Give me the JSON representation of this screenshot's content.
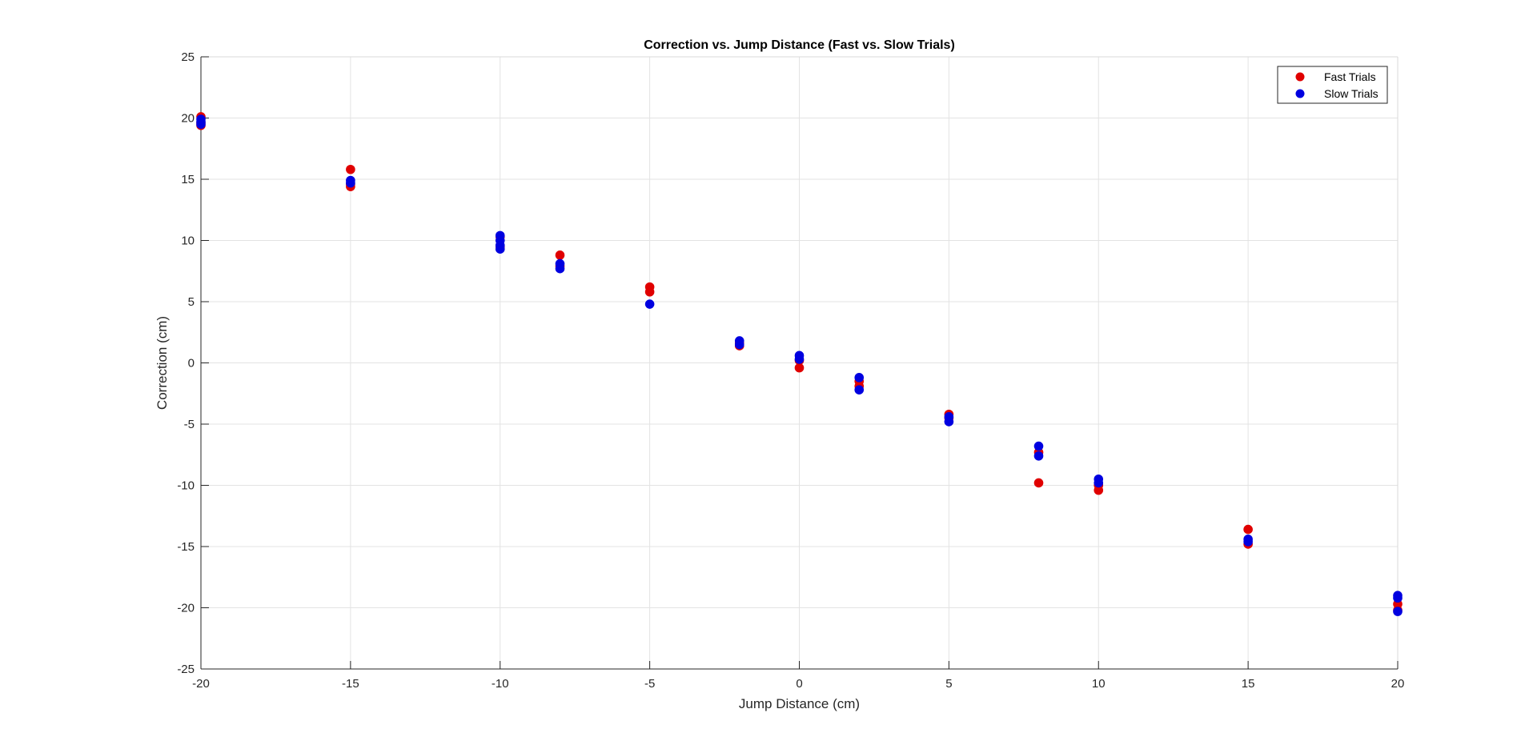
{
  "chart_data": {
    "type": "scatter",
    "title": "Correction vs. Jump Distance (Fast vs. Slow Trials)",
    "xlabel": "Jump Distance (cm)",
    "ylabel": "Correction (cm)",
    "xlim": [
      -20,
      20
    ],
    "ylim": [
      -25,
      25
    ],
    "xticks": [
      -20,
      -15,
      -10,
      -5,
      0,
      5,
      10,
      15,
      20
    ],
    "yticks": [
      -25,
      -20,
      -15,
      -10,
      -5,
      0,
      5,
      10,
      15,
      20,
      25
    ],
    "grid": true,
    "legend_position": "top-right",
    "series": [
      {
        "name": "Fast Trials",
        "color": "#e00000",
        "points": [
          [
            -20,
            20.1
          ],
          [
            -20,
            19.6
          ],
          [
            -20,
            19.4
          ],
          [
            -15,
            15.8
          ],
          [
            -15,
            14.4
          ],
          [
            -15,
            14.6
          ],
          [
            -10,
            10.3
          ],
          [
            -10,
            9.5
          ],
          [
            -8,
            8.8
          ],
          [
            -8,
            7.9
          ],
          [
            -5,
            6.2
          ],
          [
            -5,
            5.8
          ],
          [
            -2,
            1.6
          ],
          [
            -2,
            1.4
          ],
          [
            0,
            -0.4
          ],
          [
            0,
            0.2
          ],
          [
            2,
            -1.5
          ],
          [
            2,
            -1.9
          ],
          [
            5,
            -4.2
          ],
          [
            5,
            -4.5
          ],
          [
            8,
            -9.8
          ],
          [
            8,
            -7.3
          ],
          [
            10,
            -10.4
          ],
          [
            10,
            -10.0
          ],
          [
            15,
            -13.6
          ],
          [
            15,
            -14.8
          ],
          [
            20,
            -19.7
          ],
          [
            20,
            -20.2
          ]
        ]
      },
      {
        "name": "Slow Trials",
        "color": "#0000e0",
        "points": [
          [
            -20,
            19.9
          ],
          [
            -20,
            19.7
          ],
          [
            -20,
            19.5
          ],
          [
            -15,
            14.9
          ],
          [
            -15,
            14.7
          ],
          [
            -10,
            10.4
          ],
          [
            -10,
            10.0
          ],
          [
            -10,
            9.6
          ],
          [
            -10,
            9.3
          ],
          [
            -8,
            8.1
          ],
          [
            -8,
            7.7
          ],
          [
            -5,
            4.8
          ],
          [
            -2,
            1.8
          ],
          [
            -2,
            1.5
          ],
          [
            0,
            0.6
          ],
          [
            0,
            0.3
          ],
          [
            2,
            -1.2
          ],
          [
            2,
            -2.2
          ],
          [
            5,
            -4.4
          ],
          [
            5,
            -4.8
          ],
          [
            8,
            -6.8
          ],
          [
            8,
            -7.6
          ],
          [
            10,
            -9.5
          ],
          [
            10,
            -9.8
          ],
          [
            15,
            -14.4
          ],
          [
            15,
            -14.6
          ],
          [
            20,
            -19.0
          ],
          [
            20,
            -19.2
          ],
          [
            20,
            -20.3
          ]
        ]
      }
    ]
  }
}
